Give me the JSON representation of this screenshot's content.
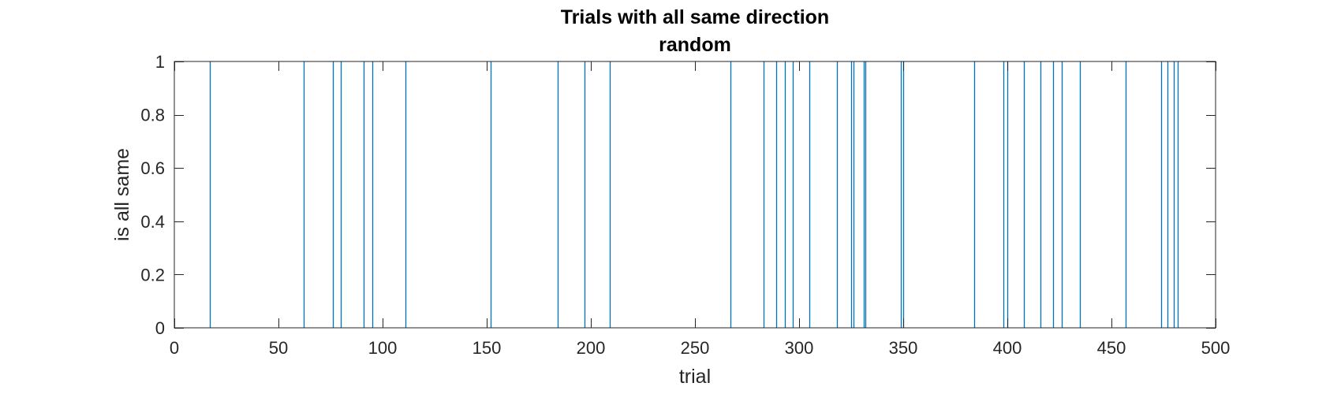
{
  "chart_data": {
    "type": "bar",
    "title": "Trials with all same direction",
    "subtitle": "random",
    "xlabel": "trial",
    "ylabel": "is all same",
    "xlim": [
      0,
      500
    ],
    "ylim": [
      0,
      1
    ],
    "xticks": [
      "0",
      "50",
      "100",
      "150",
      "200",
      "250",
      "300",
      "350",
      "400",
      "450",
      "500"
    ],
    "yticks": [
      "0",
      "0.2",
      "0.4",
      "0.6",
      "0.8",
      "1"
    ],
    "grid": false,
    "series_color": "#0072BD",
    "trials_all_same": [
      17,
      62,
      76,
      80,
      91,
      95,
      111,
      152,
      184,
      197,
      209,
      267,
      283,
      289,
      293,
      297,
      305,
      318,
      325,
      326,
      331,
      332,
      349,
      350,
      384,
      398,
      400,
      408,
      416,
      422,
      426,
      435,
      457,
      474,
      477,
      480,
      482
    ],
    "value": 1
  }
}
